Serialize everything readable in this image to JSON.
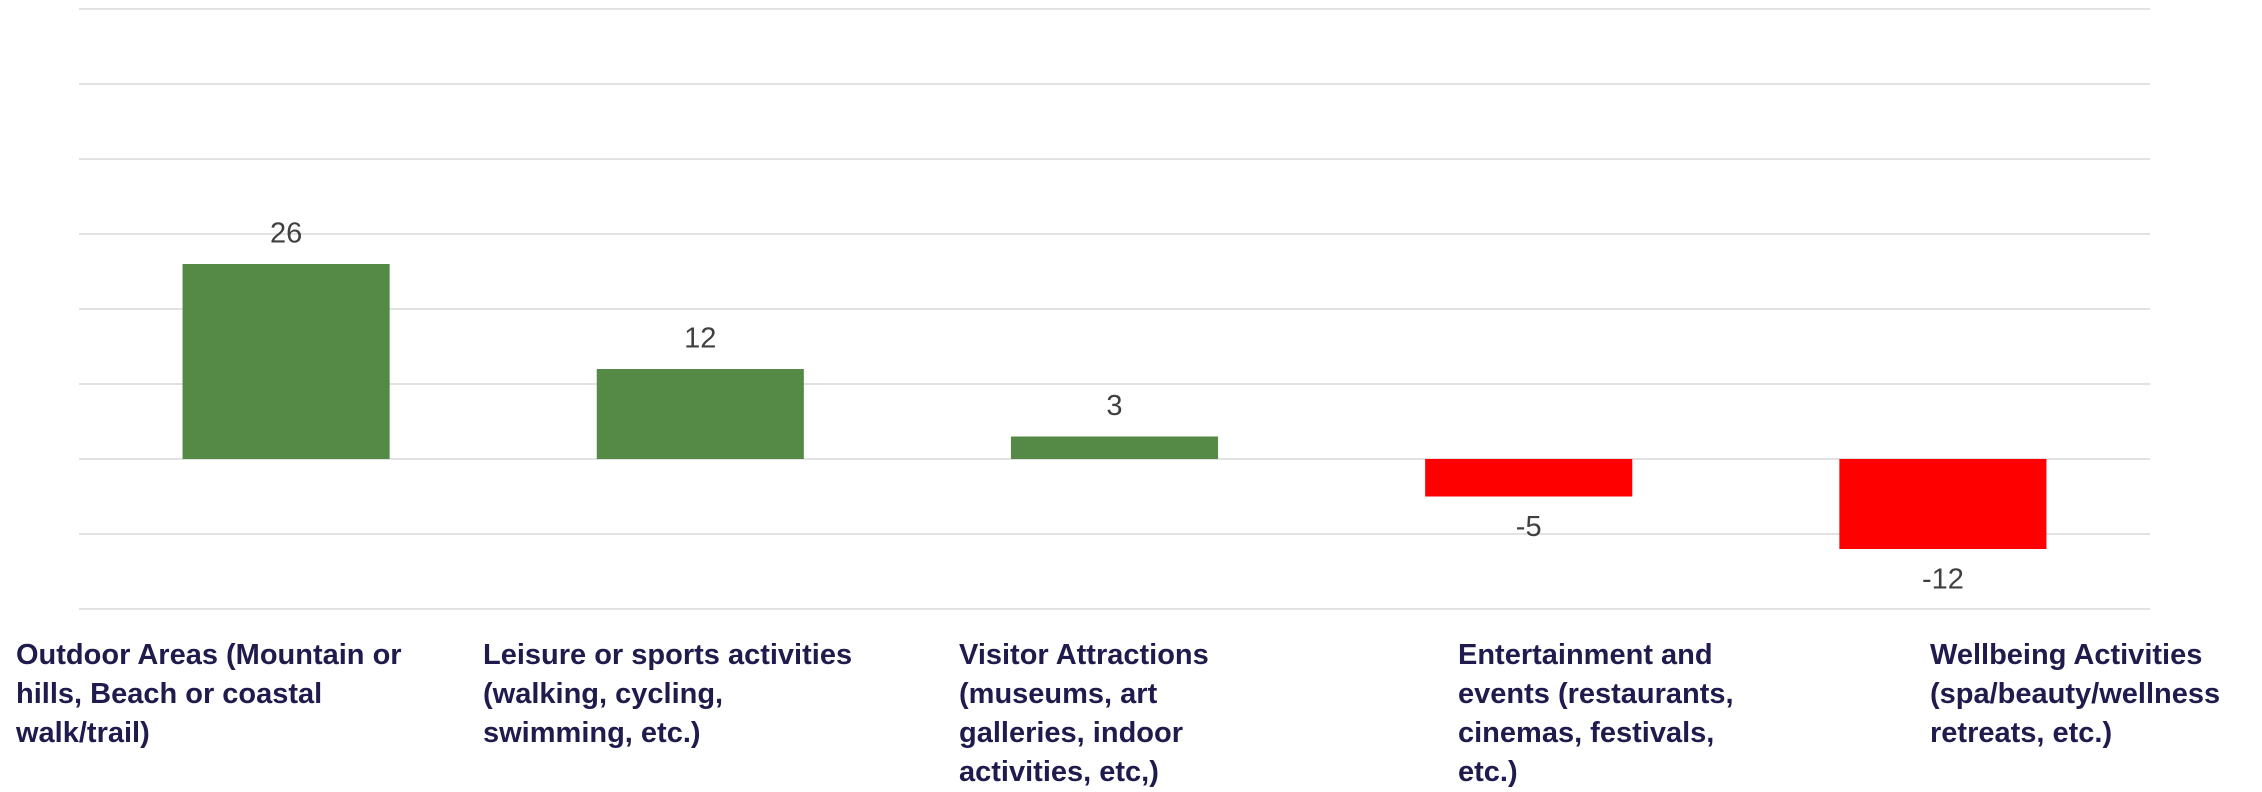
{
  "chart_data": {
    "type": "bar",
    "categories": [
      "Outdoor Areas (Mountain or hills, Beach or coastal walk/trail)",
      "Leisure or sports activities (walking, cycling, swimming, etc.)",
      "Visitor Attractions (museums, art galleries, indoor activities, etc,)",
      "Entertainment and events (restaurants, cinemas, festivals, etc.)",
      "Wellbeing Activities (spa/beauty/wellness retreats, etc.)"
    ],
    "values": [
      26,
      12,
      3,
      -5,
      -12
    ],
    "colors": [
      "#548a45",
      "#548a45",
      "#548a45",
      "#ff0000",
      "#ff0000"
    ],
    "ylim": [
      -20,
      60
    ],
    "yticks": [
      -20,
      -10,
      0,
      10,
      20,
      30,
      40,
      50,
      60
    ],
    "grid": true
  }
}
